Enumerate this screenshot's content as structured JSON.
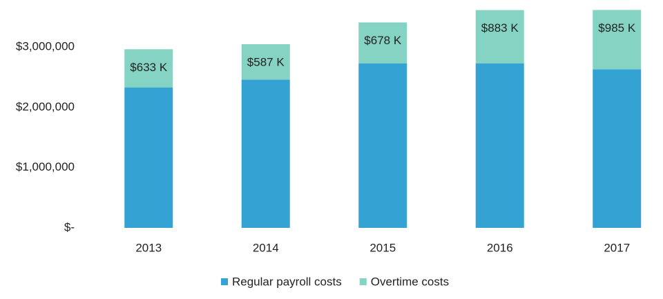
{
  "chart_data": {
    "type": "stacked_bar",
    "categories": [
      "2013",
      "2014",
      "2015",
      "2016",
      "2017"
    ],
    "series": [
      {
        "name": "Regular payroll costs",
        "color": "#35a2d4",
        "values": [
          2330000,
          2460000,
          2730000,
          2730000,
          2630000
        ]
      },
      {
        "name": "Overtime costs",
        "color": "#84d3c3",
        "values": [
          633000,
          587000,
          678000,
          883000,
          985000
        ],
        "value_labels": [
          "$633 K",
          "$587 K",
          "$678 K",
          "$883 K",
          "$985 K"
        ]
      }
    ],
    "ylim": [
      0,
      3700000
    ],
    "yticks": [
      {
        "value": 0,
        "label": "$-"
      },
      {
        "value": 1000000,
        "label": "$1,000,000"
      },
      {
        "value": 2000000,
        "label": "$2,000,000"
      },
      {
        "value": 3000000,
        "label": "$3,000,000"
      }
    ],
    "grid": false,
    "legend": "bottom"
  }
}
